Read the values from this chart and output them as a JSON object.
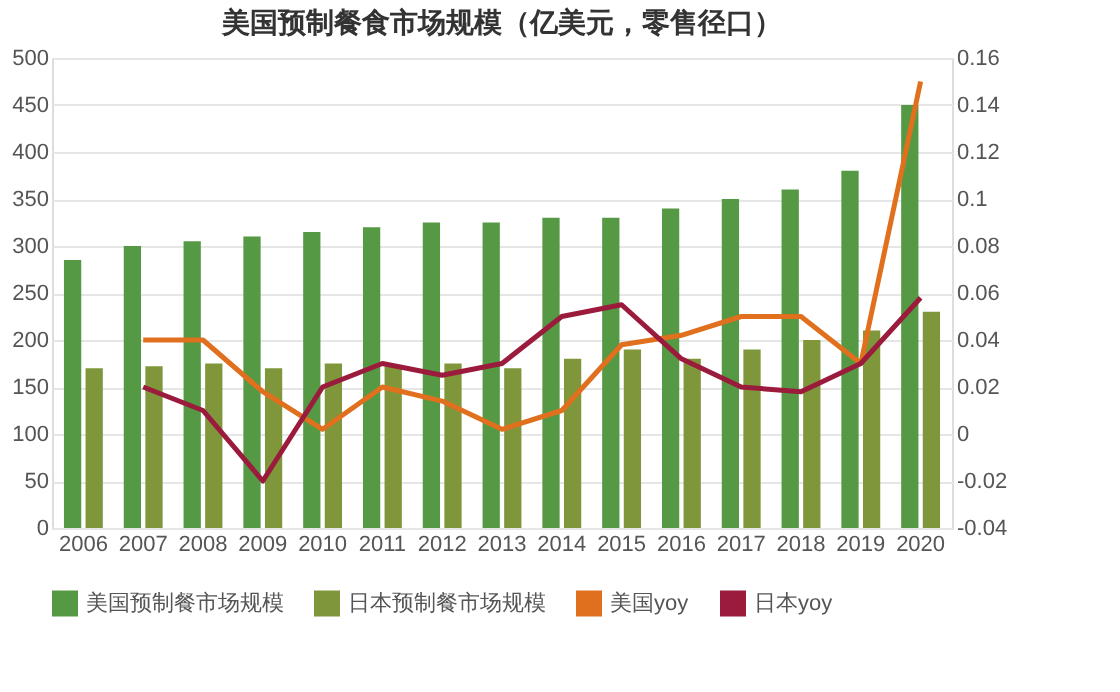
{
  "chart_data": {
    "type": "bar",
    "title": "美国预制餐食市场规模（亿美元，零售径口）",
    "categories": [
      "2006",
      "2007",
      "2008",
      "2009",
      "2010",
      "2011",
      "2012",
      "2013",
      "2014",
      "2015",
      "2016",
      "2017",
      "2018",
      "2019",
      "2020"
    ],
    "series": [
      {
        "name": "美国预制餐市场规模",
        "color": "#559944",
        "values": [
          285,
          300,
          305,
          310,
          315,
          320,
          325,
          325,
          330,
          330,
          340,
          350,
          360,
          380,
          450
        ]
      },
      {
        "name": "日本预制餐市场规模",
        "color": "#7f973a",
        "values": [
          170,
          172,
          175,
          170,
          175,
          172,
          175,
          170,
          180,
          190,
          180,
          190,
          200,
          210,
          230
        ]
      },
      {
        "name": "美国yoy",
        "type": "line",
        "axis": "y2",
        "color": "#e0701e",
        "values": [
          null,
          0.04,
          0.04,
          0.018,
          0.002,
          0.02,
          0.014,
          0.002,
          0.01,
          0.038,
          0.042,
          0.05,
          0.05,
          0.03,
          0.15
        ]
      },
      {
        "name": "日本yoy",
        "type": "line",
        "axis": "y2",
        "color": "#9b1b3c",
        "values": [
          null,
          0.02,
          0.01,
          -0.02,
          0.02,
          0.03,
          0.025,
          0.03,
          0.05,
          0.055,
          0.032,
          0.02,
          0.018,
          0.03,
          0.058
        ]
      }
    ],
    "ylim": [
      0,
      500
    ],
    "yticks": [
      0,
      50,
      100,
      150,
      200,
      250,
      300,
      350,
      400,
      450,
      500
    ],
    "y2lim": [
      -0.04,
      0.16
    ],
    "y2ticks": [
      -0.04,
      -0.02,
      0,
      0.02,
      0.04,
      0.06,
      0.08,
      0.1,
      0.12,
      0.14,
      0.16
    ],
    "grid": "y",
    "legend": "bottom",
    "marker": "none",
    "line_style": "solid"
  }
}
